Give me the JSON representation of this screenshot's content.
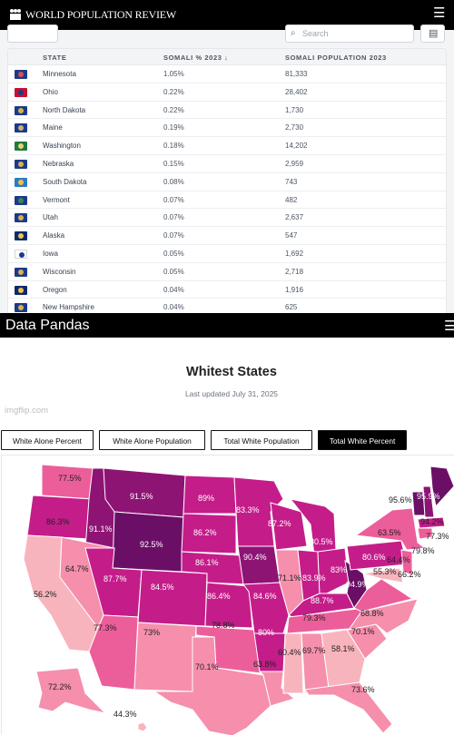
{
  "wpr": {
    "brand": "WORLD POPULATION REVIEW",
    "menu_icon": "hamburger-icon",
    "search_placeholder": "Search",
    "columns": [
      "STATE",
      "SOMALI % 2023 ↓",
      "SOMALI POPULATION 2023"
    ],
    "rows": [
      {
        "state": "Minnesota",
        "pct": "1.05%",
        "pop": "81,333",
        "flag": "#1b3a8c",
        "seal": "#e04e4e"
      },
      {
        "state": "Ohio",
        "pct": "0.22%",
        "pop": "28,402",
        "flag": "#c8102e",
        "seal": "#1b3a8c"
      },
      {
        "state": "North Dakota",
        "pct": "0.22%",
        "pop": "1,730",
        "flag": "#1b3a8c",
        "seal": "#d9b24a"
      },
      {
        "state": "Maine",
        "pct": "0.19%",
        "pop": "2,730",
        "flag": "#1b3a8c",
        "seal": "#c9b27a"
      },
      {
        "state": "Washington",
        "pct": "0.18%",
        "pop": "14,202",
        "flag": "#1f7a3e",
        "seal": "#e7d27a"
      },
      {
        "state": "Nebraska",
        "pct": "0.15%",
        "pop": "2,959",
        "flag": "#1b3a8c",
        "seal": "#d9b24a"
      },
      {
        "state": "South Dakota",
        "pct": "0.08%",
        "pop": "743",
        "flag": "#2b7cc4",
        "seal": "#f0c24a"
      },
      {
        "state": "Vermont",
        "pct": "0.07%",
        "pop": "482",
        "flag": "#1b3a8c",
        "seal": "#3a8a4a"
      },
      {
        "state": "Utah",
        "pct": "0.07%",
        "pop": "2,637",
        "flag": "#1b3a8c",
        "seal": "#d9b24a"
      },
      {
        "state": "Alaska",
        "pct": "0.07%",
        "pop": "547",
        "flag": "#0b2a6b",
        "seal": "#f0c24a"
      },
      {
        "state": "Iowa",
        "pct": "0.05%",
        "pop": "1,692",
        "flag": "#ffffff",
        "seal": "#1b3a8c"
      },
      {
        "state": "Wisconsin",
        "pct": "0.05%",
        "pop": "2,718",
        "flag": "#1b3a8c",
        "seal": "#d9b24a"
      },
      {
        "state": "Oregon",
        "pct": "0.04%",
        "pop": "1,916",
        "flag": "#0b2a6b",
        "seal": "#f0c24a"
      },
      {
        "state": "New Hampshire",
        "pct": "0.04%",
        "pop": "625",
        "flag": "#1b3a8c",
        "seal": "#d9b24a"
      }
    ]
  },
  "dp": {
    "brand": "Data Pandas",
    "menu_icon": "hamburger-icon",
    "title": "Whitest States",
    "updated": "Last updated July 31, 2025",
    "tabs": [
      "White Alone Percent",
      "White Alone Population",
      "Total White Population",
      "Total White Percent"
    ],
    "active_tab": "Total White Percent",
    "watermark": "imgflip.com",
    "colors": {
      "light": "#f8b4bd",
      "mid": "#ec5e9a",
      "strong": "#c41d8a",
      "dark": "#8e1474",
      "darkest": "#6b0f66"
    },
    "map_labels": [
      {
        "text": "77.5%"
      },
      {
        "text": "86.3%"
      },
      {
        "text": "91.5%"
      },
      {
        "text": "89%"
      },
      {
        "text": "83.3%"
      },
      {
        "text": "87.2%"
      },
      {
        "text": "91.1%"
      },
      {
        "text": "92.5%"
      },
      {
        "text": "86.2%"
      },
      {
        "text": "86.1%"
      },
      {
        "text": "90.4%"
      },
      {
        "text": "80.5%"
      },
      {
        "text": "64.7%"
      },
      {
        "text": "56.2%"
      },
      {
        "text": "87.7%"
      },
      {
        "text": "84.5%"
      },
      {
        "text": "86.4%"
      },
      {
        "text": "84.6%"
      },
      {
        "text": "71.1%"
      },
      {
        "text": "83.9%"
      },
      {
        "text": "83%"
      },
      {
        "text": "88.7%"
      },
      {
        "text": "94.9%"
      },
      {
        "text": "80.6%"
      },
      {
        "text": "64.4%"
      },
      {
        "text": "55.3%"
      },
      {
        "text": "66.2%"
      },
      {
        "text": "79.8%"
      },
      {
        "text": "63.5%"
      },
      {
        "text": "95.6%"
      },
      {
        "text": "95.9%"
      },
      {
        "text": "94.2%"
      },
      {
        "text": "77.3%"
      },
      {
        "text": "79.3%"
      },
      {
        "text": "68.8%"
      },
      {
        "text": "70.1%"
      },
      {
        "text": "77.3%"
      },
      {
        "text": "73%"
      },
      {
        "text": "78.8%"
      },
      {
        "text": "80%"
      },
      {
        "text": "70.1%"
      },
      {
        "text": "63.8%"
      },
      {
        "text": "60.4%"
      },
      {
        "text": "69.7%"
      },
      {
        "text": "58.1%"
      },
      {
        "text": "73.6%"
      },
      {
        "text": "72.2%"
      },
      {
        "text": "44.3%"
      }
    ]
  }
}
